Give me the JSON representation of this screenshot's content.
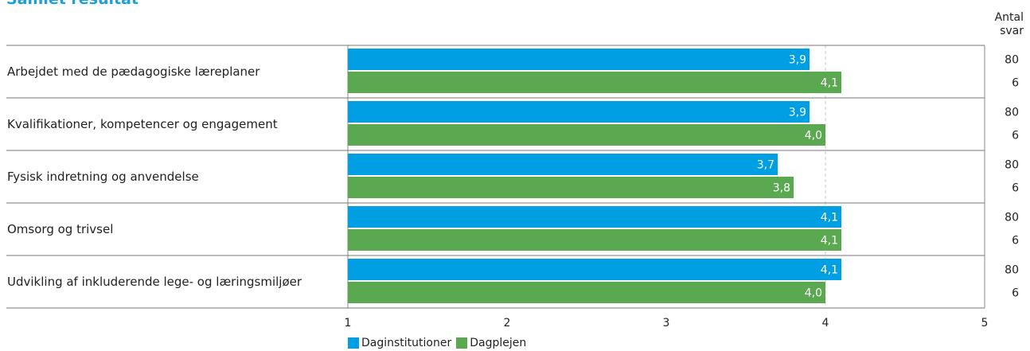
{
  "title": "Samlet resultat",
  "antal_header": [
    "Antal",
    "svar"
  ],
  "colors": {
    "series1": "#009fe3",
    "series2": "#5aa951"
  },
  "chart_data": {
    "type": "bar",
    "orientation": "horizontal",
    "title": "Samlet resultat",
    "xlim": [
      1,
      5
    ],
    "x_ticks": [
      "1",
      "2",
      "3",
      "4",
      "5"
    ],
    "reference_line": 4,
    "categories": [
      "Arbejdet med de pædagogiske læreplaner",
      "Kvalifikationer, kompetencer og engagement",
      "Fysisk indretning og anvendelse",
      "Omsorg og trivsel",
      "Udvikling af inkluderende lege- og læringsmiljøer"
    ],
    "series": [
      {
        "name": "Daginstitutioner",
        "values": [
          3.9,
          3.9,
          3.7,
          4.1,
          4.1
        ],
        "labels": [
          "3,9",
          "3,9",
          "3,7",
          "4,1",
          "4,1"
        ],
        "counts": [
          "80",
          "80",
          "80",
          "80",
          "80"
        ]
      },
      {
        "name": "Dagplejen",
        "values": [
          4.1,
          4.0,
          3.8,
          4.1,
          4.0
        ],
        "labels": [
          "4,1",
          "4,0",
          "3,8",
          "4,1",
          "4,0"
        ],
        "counts": [
          "6",
          "6",
          "6",
          "6",
          "6"
        ]
      }
    ],
    "legend": "bottom"
  }
}
